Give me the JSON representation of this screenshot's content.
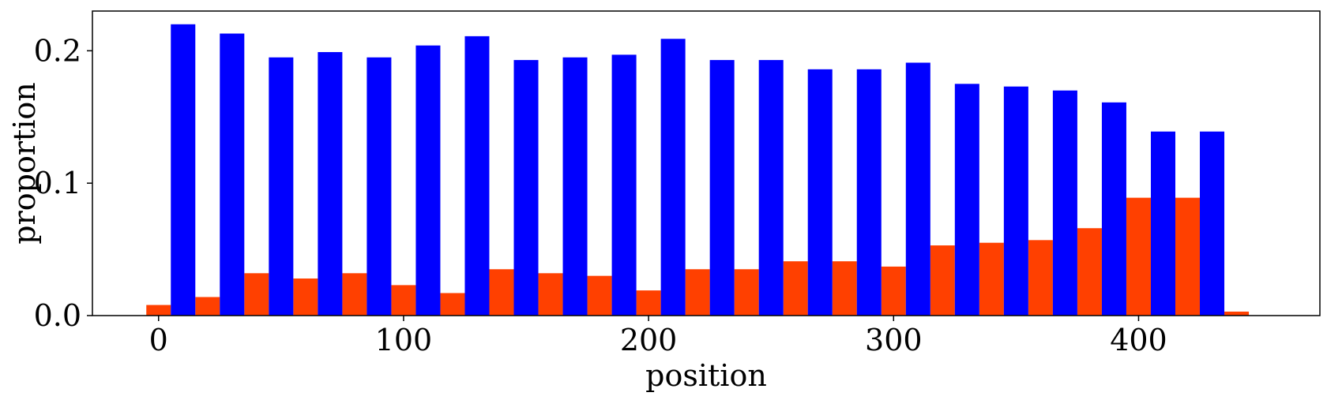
{
  "chart_data": {
    "type": "bar",
    "title": "",
    "xlabel": "position",
    "ylabel": "proportion",
    "xlim": [
      -27,
      474
    ],
    "ylim": [
      0,
      0.23
    ],
    "xticks": [
      0,
      100,
      200,
      300,
      400
    ],
    "yticks": [
      0,
      0.1,
      0.2
    ],
    "xtick_labels": [
      "0",
      "100",
      "200",
      "300",
      "400"
    ],
    "ytick_labels": [
      "0.0",
      "0.1",
      "0.2"
    ],
    "grid": false,
    "bin_width": 20,
    "series": [
      {
        "color": "#ff4000",
        "bins": [
          {
            "x0": -5,
            "x1": 5,
            "value": 0.008
          },
          {
            "x0": 15,
            "x1": 25,
            "value": 0.014
          },
          {
            "x0": 35,
            "x1": 45,
            "value": 0.032
          },
          {
            "x0": 55,
            "x1": 65,
            "value": 0.028
          },
          {
            "x0": 75,
            "x1": 85,
            "value": 0.032
          },
          {
            "x0": 95,
            "x1": 105,
            "value": 0.023
          },
          {
            "x0": 115,
            "x1": 125,
            "value": 0.017
          },
          {
            "x0": 135,
            "x1": 145,
            "value": 0.035
          },
          {
            "x0": 155,
            "x1": 165,
            "value": 0.032
          },
          {
            "x0": 175,
            "x1": 185,
            "value": 0.03
          },
          {
            "x0": 195,
            "x1": 205,
            "value": 0.019
          },
          {
            "x0": 215,
            "x1": 225,
            "value": 0.035
          },
          {
            "x0": 235,
            "x1": 245,
            "value": 0.035
          },
          {
            "x0": 255,
            "x1": 265,
            "value": 0.041
          },
          {
            "x0": 275,
            "x1": 285,
            "value": 0.041
          },
          {
            "x0": 295,
            "x1": 305,
            "value": 0.037
          },
          {
            "x0": 315,
            "x1": 325,
            "value": 0.053
          },
          {
            "x0": 335,
            "x1": 345,
            "value": 0.055
          },
          {
            "x0": 355,
            "x1": 365,
            "value": 0.057
          },
          {
            "x0": 375,
            "x1": 385,
            "value": 0.066
          },
          {
            "x0": 395,
            "x1": 405,
            "value": 0.089
          },
          {
            "x0": 415,
            "x1": 425,
            "value": 0.089
          },
          {
            "x0": 435,
            "x1": 445,
            "value": 0.003
          }
        ]
      },
      {
        "color": "#0000ff",
        "bins": [
          {
            "x0": 5,
            "x1": 15,
            "value": 0.22
          },
          {
            "x0": 25,
            "x1": 35,
            "value": 0.213
          },
          {
            "x0": 45,
            "x1": 55,
            "value": 0.195
          },
          {
            "x0": 65,
            "x1": 75,
            "value": 0.199
          },
          {
            "x0": 85,
            "x1": 95,
            "value": 0.195
          },
          {
            "x0": 105,
            "x1": 115,
            "value": 0.204
          },
          {
            "x0": 125,
            "x1": 135,
            "value": 0.211
          },
          {
            "x0": 145,
            "x1": 155,
            "value": 0.193
          },
          {
            "x0": 165,
            "x1": 175,
            "value": 0.195
          },
          {
            "x0": 185,
            "x1": 195,
            "value": 0.197
          },
          {
            "x0": 205,
            "x1": 215,
            "value": 0.209
          },
          {
            "x0": 225,
            "x1": 235,
            "value": 0.193
          },
          {
            "x0": 245,
            "x1": 255,
            "value": 0.193
          },
          {
            "x0": 265,
            "x1": 275,
            "value": 0.186
          },
          {
            "x0": 285,
            "x1": 295,
            "value": 0.186
          },
          {
            "x0": 305,
            "x1": 315,
            "value": 0.191
          },
          {
            "x0": 325,
            "x1": 335,
            "value": 0.175
          },
          {
            "x0": 345,
            "x1": 355,
            "value": 0.173
          },
          {
            "x0": 365,
            "x1": 375,
            "value": 0.17
          },
          {
            "x0": 385,
            "x1": 395,
            "value": 0.161
          },
          {
            "x0": 405,
            "x1": 415,
            "value": 0.139
          },
          {
            "x0": 425,
            "x1": 435,
            "value": 0.139
          }
        ]
      }
    ]
  }
}
